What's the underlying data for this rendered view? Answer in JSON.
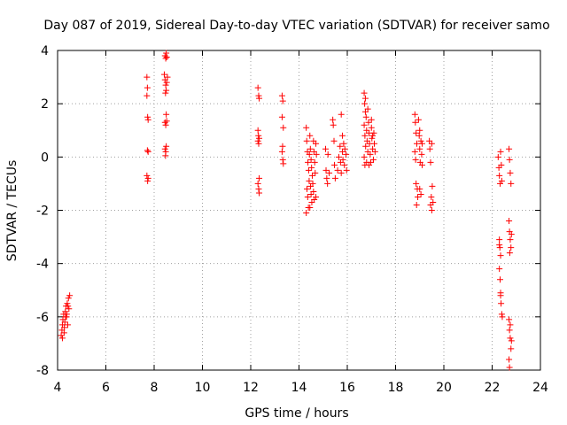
{
  "chart_data": {
    "type": "scatter",
    "title": "Day 087 of 2019, Sidereal Day-to-day VTEC variation (SDTVAR) for receiver samo",
    "xlabel": "GPS time / hours",
    "ylabel": "SDTVAR / TECUs",
    "xlim": [
      4,
      24
    ],
    "ylim": [
      -8,
      4
    ],
    "xticks": [
      4,
      6,
      8,
      10,
      12,
      14,
      16,
      18,
      20,
      22,
      24
    ],
    "yticks": [
      -8,
      -6,
      -4,
      -2,
      0,
      2,
      4
    ],
    "grid": true,
    "marker": "+",
    "series": [
      {
        "name": "SDTVAR",
        "color": "#ff0000",
        "points": [
          [
            4.15,
            -6.7
          ],
          [
            4.18,
            -6.5
          ],
          [
            4.2,
            -6.3
          ],
          [
            4.22,
            -6.1
          ],
          [
            4.25,
            -5.9
          ],
          [
            4.27,
            -6.6
          ],
          [
            4.3,
            -6.2
          ],
          [
            4.32,
            -5.8
          ],
          [
            4.35,
            -5.6
          ],
          [
            4.37,
            -6.0
          ],
          [
            4.4,
            -5.5
          ],
          [
            4.42,
            -6.3
          ],
          [
            4.45,
            -5.3
          ],
          [
            4.47,
            -5.7
          ],
          [
            4.5,
            -5.2
          ],
          [
            4.2,
            -6.8
          ],
          [
            4.28,
            -6.4
          ],
          [
            4.33,
            -6.0
          ],
          [
            4.38,
            -5.9
          ],
          [
            4.43,
            -5.6
          ],
          [
            7.7,
            3.0
          ],
          [
            7.72,
            2.6
          ],
          [
            7.7,
            2.3
          ],
          [
            7.73,
            1.5
          ],
          [
            7.75,
            1.4
          ],
          [
            7.72,
            0.25
          ],
          [
            7.75,
            0.2
          ],
          [
            7.7,
            -0.7
          ],
          [
            7.73,
            -0.9
          ],
          [
            7.75,
            -0.8
          ],
          [
            8.45,
            3.8
          ],
          [
            8.48,
            3.7
          ],
          [
            8.5,
            3.9
          ],
          [
            8.52,
            3.75
          ],
          [
            8.42,
            3.1
          ],
          [
            8.45,
            2.9
          ],
          [
            8.48,
            2.7
          ],
          [
            8.5,
            2.5
          ],
          [
            8.52,
            2.8
          ],
          [
            8.55,
            3.0
          ],
          [
            8.47,
            2.4
          ],
          [
            8.5,
            1.6
          ],
          [
            8.45,
            1.3
          ],
          [
            8.48,
            1.2
          ],
          [
            8.52,
            1.35
          ],
          [
            8.45,
            0.3
          ],
          [
            8.48,
            0.2
          ],
          [
            8.5,
            0.4
          ],
          [
            8.47,
            0.05
          ],
          [
            12.3,
            2.6
          ],
          [
            12.33,
            2.3
          ],
          [
            12.35,
            2.2
          ],
          [
            12.3,
            1.0
          ],
          [
            12.32,
            0.8
          ],
          [
            12.35,
            0.7
          ],
          [
            12.3,
            0.6
          ],
          [
            12.33,
            0.5
          ],
          [
            12.35,
            -0.8
          ],
          [
            12.3,
            -1.0
          ],
          [
            12.33,
            -1.2
          ],
          [
            12.35,
            -1.35
          ],
          [
            13.3,
            2.3
          ],
          [
            13.33,
            2.1
          ],
          [
            13.3,
            1.5
          ],
          [
            13.35,
            1.1
          ],
          [
            13.32,
            0.4
          ],
          [
            13.3,
            0.2
          ],
          [
            13.33,
            -0.1
          ],
          [
            13.35,
            -0.25
          ],
          [
            14.3,
            1.1
          ],
          [
            14.32,
            0.6
          ],
          [
            14.35,
            0.2
          ],
          [
            14.37,
            -0.2
          ],
          [
            14.4,
            -0.5
          ],
          [
            14.42,
            -0.9
          ],
          [
            14.33,
            -1.2
          ],
          [
            14.36,
            -1.5
          ],
          [
            14.39,
            -1.9
          ],
          [
            14.3,
            -2.1
          ],
          [
            14.45,
            0.8
          ],
          [
            14.47,
            0.3
          ],
          [
            14.5,
            -0.1
          ],
          [
            14.52,
            -0.4
          ],
          [
            14.55,
            -0.7
          ],
          [
            14.48,
            -1.1
          ],
          [
            14.5,
            -1.4
          ],
          [
            14.53,
            -1.7
          ],
          [
            14.6,
            0.6
          ],
          [
            14.62,
            0.2
          ],
          [
            14.65,
            -0.2
          ],
          [
            14.67,
            -0.6
          ],
          [
            14.6,
            -1.3
          ],
          [
            14.63,
            -1.6
          ],
          [
            14.7,
            0.5
          ],
          [
            14.72,
            0.1
          ],
          [
            14.7,
            -1.5
          ],
          [
            14.43,
            0.1
          ],
          [
            14.57,
            -1.0
          ],
          [
            14.45,
            -1.9
          ],
          [
            15.1,
            0.3
          ],
          [
            15.12,
            -0.5
          ],
          [
            15.15,
            -0.8
          ],
          [
            15.18,
            -1.0
          ],
          [
            15.2,
            0.1
          ],
          [
            15.25,
            -0.6
          ],
          [
            15.4,
            1.4
          ],
          [
            15.42,
            1.2
          ],
          [
            15.45,
            0.6
          ],
          [
            15.47,
            -0.3
          ],
          [
            15.5,
            -0.8
          ],
          [
            15.6,
            -0.5
          ],
          [
            15.65,
            0.0
          ],
          [
            15.7,
            0.4
          ],
          [
            15.72,
            -0.2
          ],
          [
            15.75,
            -0.6
          ],
          [
            15.8,
            0.2
          ],
          [
            15.82,
            -0.1
          ],
          [
            15.85,
            0.5
          ],
          [
            15.88,
            -0.3
          ],
          [
            15.9,
            0.3
          ],
          [
            15.95,
            0.1
          ],
          [
            15.97,
            -0.5
          ],
          [
            15.75,
            1.6
          ],
          [
            15.8,
            0.8
          ],
          [
            16.7,
            2.4
          ],
          [
            16.72,
            2.0
          ],
          [
            16.75,
            1.7
          ],
          [
            16.7,
            1.2
          ],
          [
            16.73,
            0.8
          ],
          [
            16.76,
            0.4
          ],
          [
            16.7,
            0.0
          ],
          [
            16.73,
            -0.3
          ],
          [
            16.78,
            1.5
          ],
          [
            16.8,
            1.0
          ],
          [
            16.82,
            0.6
          ],
          [
            16.85,
            0.2
          ],
          [
            16.8,
            -0.2
          ],
          [
            16.88,
            1.3
          ],
          [
            16.9,
            0.9
          ],
          [
            16.92,
            0.5
          ],
          [
            16.95,
            0.1
          ],
          [
            16.9,
            -0.3
          ],
          [
            17.0,
            1.1
          ],
          [
            17.02,
            0.7
          ],
          [
            17.05,
            0.3
          ],
          [
            17.08,
            -0.1
          ],
          [
            17.1,
            0.9
          ],
          [
            17.12,
            0.5
          ],
          [
            17.15,
            0.2
          ],
          [
            16.75,
            2.2
          ],
          [
            16.85,
            1.8
          ],
          [
            17.0,
            1.4
          ],
          [
            16.97,
            -0.2
          ],
          [
            17.05,
            0.8
          ],
          [
            18.8,
            1.6
          ],
          [
            18.82,
            1.3
          ],
          [
            18.85,
            0.9
          ],
          [
            18.88,
            0.5
          ],
          [
            18.8,
            0.2
          ],
          [
            18.83,
            -0.1
          ],
          [
            18.85,
            -1.0
          ],
          [
            18.9,
            -1.2
          ],
          [
            18.92,
            -1.5
          ],
          [
            18.95,
            1.4
          ],
          [
            18.98,
            0.8
          ],
          [
            19.0,
            0.3
          ],
          [
            19.02,
            -0.2
          ],
          [
            19.05,
            0.6
          ],
          [
            19.08,
            0.1
          ],
          [
            19.1,
            -0.3
          ],
          [
            19.0,
            -1.2
          ],
          [
            19.05,
            -1.4
          ],
          [
            19.4,
            0.6
          ],
          [
            19.42,
            0.3
          ],
          [
            19.45,
            -0.2
          ],
          [
            19.5,
            0.5
          ],
          [
            19.48,
            -1.5
          ],
          [
            19.45,
            -1.8
          ],
          [
            19.5,
            -2.0
          ],
          [
            19.55,
            -1.7
          ],
          [
            19.52,
            -1.1
          ],
          [
            18.87,
            -1.8
          ],
          [
            19.0,
            1.0
          ],
          [
            19.1,
            0.5
          ],
          [
            22.25,
            0.0
          ],
          [
            22.28,
            -0.4
          ],
          [
            22.3,
            -0.7
          ],
          [
            22.33,
            -1.0
          ],
          [
            22.35,
            0.2
          ],
          [
            22.38,
            -0.3
          ],
          [
            22.4,
            -0.9
          ],
          [
            22.3,
            -3.1
          ],
          [
            22.32,
            -3.4
          ],
          [
            22.35,
            -3.7
          ],
          [
            22.3,
            -4.2
          ],
          [
            22.33,
            -4.6
          ],
          [
            22.35,
            -5.1
          ],
          [
            22.37,
            -5.5
          ],
          [
            22.4,
            -5.9
          ],
          [
            22.3,
            -3.3
          ],
          [
            22.35,
            -5.2
          ],
          [
            22.42,
            -6.0
          ],
          [
            22.7,
            0.3
          ],
          [
            22.72,
            -0.1
          ],
          [
            22.75,
            -0.6
          ],
          [
            22.78,
            -1.0
          ],
          [
            22.7,
            -2.4
          ],
          [
            22.72,
            -2.8
          ],
          [
            22.75,
            -3.1
          ],
          [
            22.78,
            -3.4
          ],
          [
            22.8,
            -2.9
          ],
          [
            22.7,
            -6.1
          ],
          [
            22.72,
            -6.5
          ],
          [
            22.75,
            -6.8
          ],
          [
            22.78,
            -7.2
          ],
          [
            22.7,
            -7.6
          ],
          [
            22.72,
            -7.9
          ],
          [
            22.75,
            -6.3
          ],
          [
            22.8,
            -6.9
          ],
          [
            22.73,
            -3.6
          ]
        ]
      }
    ]
  }
}
